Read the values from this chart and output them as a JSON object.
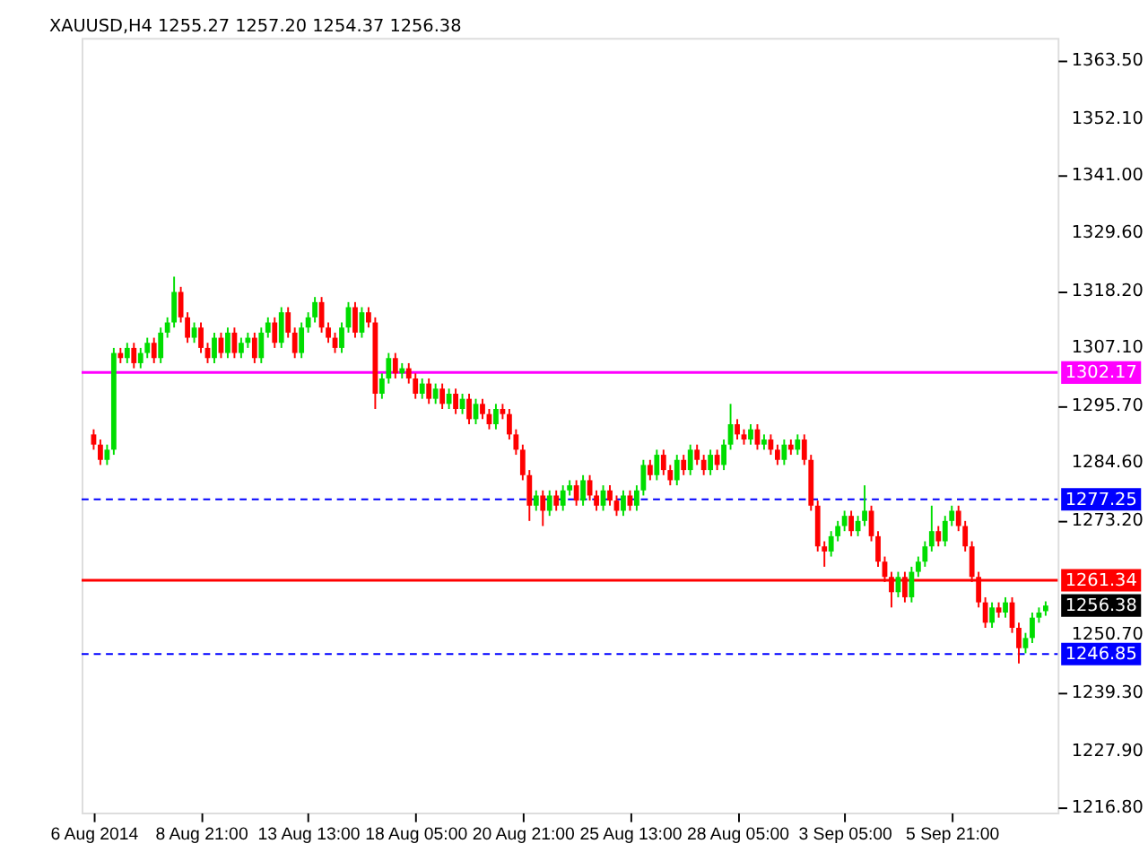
{
  "chart_data": {
    "type": "candlestick",
    "title": "XAUUSD,H4  1255.27 1257.20 1254.37 1256.38",
    "categories": [
      "6 Aug 2014",
      null,
      null,
      null,
      null,
      null,
      null,
      null,
      null,
      null,
      null,
      null,
      null,
      null,
      null,
      null,
      "8 Aug 21:00",
      null,
      null,
      null,
      null,
      null,
      null,
      null,
      null,
      null,
      null,
      null,
      null,
      null,
      null,
      null,
      "13 Aug 13:00",
      null,
      null,
      null,
      null,
      null,
      null,
      null,
      null,
      null,
      null,
      null,
      null,
      null,
      null,
      null,
      "18 Aug 05:00",
      null,
      null,
      null,
      null,
      null,
      null,
      null,
      null,
      null,
      null,
      null,
      null,
      null,
      null,
      null,
      "20 Aug 21:00",
      null,
      null,
      null,
      null,
      null,
      null,
      null,
      null,
      null,
      null,
      null,
      null,
      null,
      null,
      null,
      "25 Aug 13:00",
      null,
      null,
      null,
      null,
      null,
      null,
      null,
      null,
      null,
      null,
      null,
      null,
      null,
      null,
      null,
      "28 Aug 05:00",
      null,
      null,
      null,
      null,
      null,
      null,
      null,
      null,
      null,
      null,
      null,
      null,
      null,
      null,
      null,
      "3 Sep 05:00",
      null,
      null,
      null,
      null,
      null,
      null,
      null,
      null,
      null,
      null,
      null,
      null,
      null,
      null,
      null,
      "5 Sep 21:00",
      null,
      null,
      null,
      null,
      null,
      null,
      null,
      null,
      null,
      null,
      null,
      null,
      null,
      null
    ],
    "ohlc": [
      [
        1290,
        1291,
        1287,
        1288
      ],
      [
        1288,
        1289,
        1284,
        1285
      ],
      [
        1285,
        1288,
        1284,
        1287
      ],
      [
        1287,
        1307,
        1286,
        1306
      ],
      [
        1306,
        1307,
        1304,
        1305
      ],
      [
        1305,
        1308,
        1304,
        1307
      ],
      [
        1307,
        1308,
        1303,
        1304
      ],
      [
        1304,
        1307,
        1303,
        1306
      ],
      [
        1306,
        1309,
        1305,
        1308
      ],
      [
        1308,
        1309,
        1304,
        1305
      ],
      [
        1305,
        1311,
        1304,
        1310
      ],
      [
        1310,
        1313,
        1309,
        1312
      ],
      [
        1312,
        1321,
        1311,
        1318
      ],
      [
        1318,
        1319,
        1312,
        1313
      ],
      [
        1313,
        1314,
        1308,
        1309
      ],
      [
        1309,
        1312,
        1308,
        1311
      ],
      [
        1311,
        1312,
        1306,
        1307
      ],
      [
        1307,
        1308,
        1304,
        1305
      ],
      [
        1305,
        1310,
        1304,
        1309
      ],
      [
        1309,
        1310,
        1305,
        1306
      ],
      [
        1306,
        1311,
        1305,
        1310
      ],
      [
        1310,
        1311,
        1305,
        1306
      ],
      [
        1306,
        1309,
        1305,
        1308
      ],
      [
        1308,
        1310,
        1307,
        1309
      ],
      [
        1309,
        1310,
        1304,
        1305
      ],
      [
        1305,
        1311,
        1304,
        1310
      ],
      [
        1310,
        1313,
        1309,
        1312
      ],
      [
        1312,
        1313,
        1307,
        1308
      ],
      [
        1308,
        1315,
        1307,
        1314
      ],
      [
        1314,
        1315,
        1309,
        1310
      ],
      [
        1310,
        1311,
        1305,
        1306
      ],
      [
        1306,
        1312,
        1305,
        1311
      ],
      [
        1311,
        1314,
        1310,
        1313
      ],
      [
        1313,
        1317,
        1312,
        1316
      ],
      [
        1316,
        1317,
        1310,
        1311
      ],
      [
        1311,
        1312,
        1308,
        1309
      ],
      [
        1309,
        1310,
        1306,
        1307
      ],
      [
        1307,
        1312,
        1306,
        1311
      ],
      [
        1311,
        1316,
        1310,
        1315
      ],
      [
        1315,
        1316,
        1309,
        1310
      ],
      [
        1310,
        1315,
        1309,
        1314
      ],
      [
        1314,
        1315,
        1311,
        1312
      ],
      [
        1312,
        1313,
        1295,
        1298
      ],
      [
        1298,
        1302,
        1297,
        1301
      ],
      [
        1301,
        1306,
        1300,
        1305
      ],
      [
        1305,
        1306,
        1301,
        1302
      ],
      [
        1302,
        1304,
        1301,
        1303
      ],
      [
        1303,
        1304,
        1300,
        1301
      ],
      [
        1301,
        1302,
        1297,
        1298
      ],
      [
        1298,
        1301,
        1297,
        1300
      ],
      [
        1300,
        1301,
        1296,
        1297
      ],
      [
        1297,
        1300,
        1296,
        1299
      ],
      [
        1299,
        1300,
        1295,
        1296
      ],
      [
        1296,
        1299,
        1295,
        1298
      ],
      [
        1298,
        1299,
        1294,
        1295
      ],
      [
        1295,
        1298,
        1294,
        1297
      ],
      [
        1297,
        1298,
        1292,
        1293
      ],
      [
        1293,
        1297,
        1292,
        1296
      ],
      [
        1296,
        1297,
        1293,
        1294
      ],
      [
        1294,
        1295,
        1291,
        1292
      ],
      [
        1292,
        1296,
        1291,
        1295
      ],
      [
        1295,
        1296,
        1293,
        1294
      ],
      [
        1294,
        1295,
        1289,
        1290
      ],
      [
        1290,
        1291,
        1286,
        1287
      ],
      [
        1287,
        1288,
        1281,
        1282
      ],
      [
        1282,
        1283,
        1273,
        1276
      ],
      [
        1276,
        1279,
        1275,
        1278
      ],
      [
        1278,
        1279,
        1272,
        1275
      ],
      [
        1275,
        1279,
        1274,
        1278
      ],
      [
        1278,
        1279,
        1275,
        1276
      ],
      [
        1276,
        1280,
        1275,
        1279
      ],
      [
        1279,
        1281,
        1278,
        1280
      ],
      [
        1280,
        1281,
        1276,
        1277
      ],
      [
        1277,
        1282,
        1276,
        1281
      ],
      [
        1281,
        1282,
        1277,
        1278
      ],
      [
        1278,
        1279,
        1275,
        1276
      ],
      [
        1276,
        1280,
        1275,
        1279
      ],
      [
        1279,
        1280,
        1276,
        1277
      ],
      [
        1277,
        1278,
        1274,
        1275
      ],
      [
        1275,
        1279,
        1274,
        1278
      ],
      [
        1278,
        1279,
        1275,
        1276
      ],
      [
        1276,
        1280,
        1275,
        1279
      ],
      [
        1279,
        1285,
        1278,
        1284
      ],
      [
        1284,
        1285,
        1281,
        1282
      ],
      [
        1282,
        1287,
        1281,
        1286
      ],
      [
        1286,
        1287,
        1282,
        1283
      ],
      [
        1283,
        1284,
        1280,
        1281
      ],
      [
        1281,
        1286,
        1280,
        1285
      ],
      [
        1285,
        1286,
        1282,
        1283
      ],
      [
        1283,
        1288,
        1282,
        1287
      ],
      [
        1287,
        1288,
        1284,
        1285
      ],
      [
        1285,
        1286,
        1282,
        1283
      ],
      [
        1283,
        1287,
        1282,
        1286
      ],
      [
        1286,
        1287,
        1283,
        1284
      ],
      [
        1284,
        1289,
        1283,
        1288
      ],
      [
        1288,
        1296,
        1287,
        1292
      ],
      [
        1292,
        1293,
        1289,
        1290
      ],
      [
        1290,
        1291,
        1288,
        1289
      ],
      [
        1289,
        1292,
        1288,
        1291
      ],
      [
        1291,
        1292,
        1287,
        1288
      ],
      [
        1288,
        1290,
        1287,
        1289
      ],
      [
        1289,
        1290,
        1286,
        1287
      ],
      [
        1287,
        1288,
        1284,
        1285
      ],
      [
        1285,
        1289,
        1284,
        1288
      ],
      [
        1288,
        1289,
        1286,
        1287
      ],
      [
        1287,
        1290,
        1286,
        1289
      ],
      [
        1289,
        1290,
        1284,
        1285
      ],
      [
        1285,
        1286,
        1275,
        1276
      ],
      [
        1276,
        1277,
        1267,
        1268
      ],
      [
        1268,
        1269,
        1264,
        1267
      ],
      [
        1267,
        1271,
        1266,
        1270
      ],
      [
        1270,
        1273,
        1269,
        1272
      ],
      [
        1272,
        1275,
        1271,
        1274
      ],
      [
        1274,
        1275,
        1270,
        1271
      ],
      [
        1271,
        1274,
        1270,
        1273
      ],
      [
        1273,
        1280,
        1272,
        1275
      ],
      [
        1275,
        1276,
        1269,
        1270
      ],
      [
        1270,
        1271,
        1264,
        1265
      ],
      [
        1265,
        1266,
        1261,
        1262
      ],
      [
        1262,
        1263,
        1256,
        1259
      ],
      [
        1259,
        1263,
        1258,
        1262
      ],
      [
        1262,
        1263,
        1257,
        1258
      ],
      [
        1258,
        1264,
        1257,
        1263
      ],
      [
        1263,
        1266,
        1262,
        1265
      ],
      [
        1265,
        1269,
        1264,
        1268
      ],
      [
        1268,
        1276,
        1267,
        1271
      ],
      [
        1271,
        1272,
        1268,
        1269
      ],
      [
        1269,
        1274,
        1268,
        1273
      ],
      [
        1273,
        1276,
        1272,
        1275
      ],
      [
        1275,
        1276,
        1271,
        1272
      ],
      [
        1272,
        1273,
        1267,
        1268
      ],
      [
        1268,
        1269,
        1261,
        1262
      ],
      [
        1262,
        1263,
        1256,
        1257
      ],
      [
        1257,
        1258,
        1252,
        1253
      ],
      [
        1253,
        1257,
        1252,
        1256
      ],
      [
        1256,
        1257,
        1254,
        1255
      ],
      [
        1255,
        1258,
        1254,
        1257
      ],
      [
        1257,
        1258,
        1251,
        1252
      ],
      [
        1252,
        1253,
        1245,
        1248
      ],
      [
        1248,
        1251,
        1247,
        1250
      ],
      [
        1250,
        1255,
        1249,
        1254
      ],
      [
        1254,
        1256,
        1253,
        1255
      ],
      [
        1255.27,
        1257.2,
        1254.37,
        1256.38
      ]
    ],
    "colors": [
      "#ff0000",
      "#ff0000",
      "#00dd00",
      "#00dd00",
      "#ff0000",
      "#00dd00",
      "#ff0000",
      "#00dd00",
      "#00dd00",
      "#ff0000",
      "#00dd00",
      "#00dd00",
      "#00dd00",
      "#ff0000",
      "#ff0000",
      "#00dd00",
      "#ff0000",
      "#ff0000",
      "#00dd00",
      "#ff0000",
      "#00dd00",
      "#ff0000",
      "#00dd00",
      "#00dd00",
      "#ff0000",
      "#00dd00",
      "#00dd00",
      "#ff0000",
      "#00dd00",
      "#ff0000",
      "#ff0000",
      "#00dd00",
      "#00dd00",
      "#00dd00",
      "#ff0000",
      "#ff0000",
      "#ff0000",
      "#00dd00",
      "#00dd00",
      "#ff0000",
      "#00dd00",
      "#ff0000",
      "#ff0000",
      "#00dd00",
      "#00dd00",
      "#ff0000",
      "#00dd00",
      "#ff0000",
      "#ff0000",
      "#00dd00",
      "#ff0000",
      "#00dd00",
      "#ff0000",
      "#00dd00",
      "#ff0000",
      "#00dd00",
      "#ff0000",
      "#00dd00",
      "#ff0000",
      "#ff0000",
      "#00dd00",
      "#ff0000",
      "#ff0000",
      "#ff0000",
      "#ff0000",
      "#ff0000",
      "#00dd00",
      "#ff0000",
      "#00dd00",
      "#ff0000",
      "#00dd00",
      "#00dd00",
      "#ff0000",
      "#00dd00",
      "#ff0000",
      "#ff0000",
      "#00dd00",
      "#ff0000",
      "#ff0000",
      "#00dd00",
      "#ff0000",
      "#00dd00",
      "#00dd00",
      "#ff0000",
      "#00dd00",
      "#ff0000",
      "#ff0000",
      "#00dd00",
      "#ff0000",
      "#00dd00",
      "#ff0000",
      "#ff0000",
      "#00dd00",
      "#ff0000",
      "#00dd00",
      "#00dd00",
      "#ff0000",
      "#ff0000",
      "#00dd00",
      "#ff0000",
      "#00dd00",
      "#ff0000",
      "#ff0000",
      "#00dd00",
      "#ff0000",
      "#00dd00",
      "#ff0000",
      "#ff0000",
      "#ff0000",
      "#ff0000",
      "#00dd00",
      "#00dd00",
      "#00dd00",
      "#ff0000",
      "#00dd00",
      "#00dd00",
      "#ff0000",
      "#ff0000",
      "#ff0000",
      "#ff0000",
      "#00dd00",
      "#ff0000",
      "#00dd00",
      "#00dd00",
      "#00dd00",
      "#00dd00",
      "#ff0000",
      "#00dd00",
      "#00dd00",
      "#ff0000",
      "#ff0000",
      "#ff0000",
      "#ff0000",
      "#ff0000",
      "#00dd00",
      "#ff0000",
      "#00dd00",
      "#ff0000",
      "#ff0000",
      "#00dd00",
      "#00dd00",
      "#00dd00",
      "#00dd00"
    ],
    "ylim": [
      1215.7,
      1367.9
    ],
    "yticks": [
      {
        "value": 1216.8,
        "label": "1216.80"
      },
      {
        "value": 1227.9,
        "label": "1227.90"
      },
      {
        "value": 1239.3,
        "label": "1239.30"
      },
      {
        "value": 1250.7,
        "label": "1250.70"
      },
      {
        "value": 1273.2,
        "label": "1273.20"
      },
      {
        "value": 1284.6,
        "label": "1284.60"
      },
      {
        "value": 1295.7,
        "label": "1295.70"
      },
      {
        "value": 1307.1,
        "label": "1307.10"
      },
      {
        "value": 1318.2,
        "label": "1318.20"
      },
      {
        "value": 1329.6,
        "label": "1329.60"
      },
      {
        "value": 1341.0,
        "label": "1341.00"
      },
      {
        "value": 1352.1,
        "label": "1352.10"
      },
      {
        "value": 1363.5,
        "label": "1363.50"
      }
    ],
    "ref_lines": [
      {
        "axis": "y",
        "value": 1302.17,
        "label": "1302.17",
        "color": "#ff00ff",
        "line_style": "solid"
      },
      {
        "axis": "y",
        "value": 1277.25,
        "label": "1277.25",
        "color": "#0000ff",
        "line_style": "dashed"
      },
      {
        "axis": "y",
        "value": 1261.34,
        "label": "1261.34",
        "color": "#ff0000",
        "line_style": "solid"
      },
      {
        "axis": "y",
        "value": 1246.85,
        "label": "1246.85",
        "color": "#0000ff",
        "line_style": "dashed"
      }
    ],
    "annotations": [
      "1256.38"
    ],
    "grid": false
  }
}
